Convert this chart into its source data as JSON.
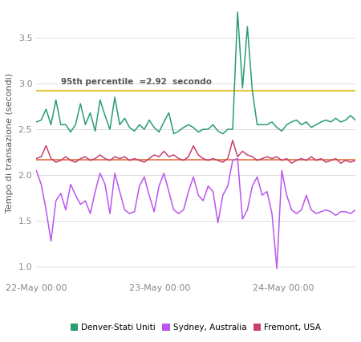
{
  "title": "",
  "ylabel": "Tempo di transazione (secondi)",
  "ylim": [
    0.85,
    3.85
  ],
  "yticks": [
    1.0,
    1.5,
    2.0,
    2.5,
    3.0,
    3.5
  ],
  "percentile_value": 2.92,
  "percentile_label": "95th percentile  =2.92  secondo",
  "percentile_color": "#e8c840",
  "fremont_hline": 2.17,
  "fremont_hline_color": "#e07040",
  "background_color": "#ffffff",
  "grid_color": "#dddddd",
  "denver_color": "#2a9d6e",
  "sydney_color": "#bb55ee",
  "fremont_color": "#c84070",
  "legend_labels": [
    "Denver-Stati Uniti",
    "Sydney, Australia",
    "Fremont, USA"
  ],
  "x_tick_labels": [
    "22-May 00:00",
    "23-May 00:00",
    "24-May 00:00"
  ],
  "denver_values": [
    2.58,
    2.6,
    2.72,
    2.55,
    2.82,
    2.55,
    2.55,
    2.47,
    2.55,
    2.78,
    2.55,
    2.68,
    2.48,
    2.82,
    2.65,
    2.5,
    2.85,
    2.55,
    2.62,
    2.52,
    2.48,
    2.55,
    2.5,
    2.6,
    2.52,
    2.47,
    2.58,
    2.68,
    2.45,
    2.48,
    2.52,
    2.55,
    2.52,
    2.47,
    2.5,
    2.5,
    2.55,
    2.48,
    2.45,
    2.5,
    2.5,
    3.78,
    2.95,
    3.62,
    2.92,
    2.55,
    2.55,
    2.55,
    2.58,
    2.52,
    2.48,
    2.55,
    2.58,
    2.6,
    2.55,
    2.58,
    2.52,
    2.55,
    2.58,
    2.6,
    2.58,
    2.62,
    2.58,
    2.6,
    2.65,
    2.6
  ],
  "sydney_values": [
    2.05,
    1.9,
    1.62,
    1.28,
    1.72,
    1.8,
    1.62,
    1.9,
    1.78,
    1.68,
    1.72,
    1.58,
    1.82,
    2.02,
    1.9,
    1.58,
    2.02,
    1.82,
    1.62,
    1.58,
    1.6,
    1.88,
    1.98,
    1.78,
    1.6,
    1.88,
    2.02,
    1.82,
    1.62,
    1.58,
    1.62,
    1.82,
    1.98,
    1.78,
    1.72,
    1.88,
    1.82,
    1.48,
    1.78,
    1.88,
    2.16,
    2.18,
    1.52,
    1.62,
    1.88,
    1.98,
    1.78,
    1.82,
    1.58,
    0.98,
    2.05,
    1.78,
    1.62,
    1.58,
    1.62,
    1.78,
    1.62,
    1.58,
    1.6,
    1.62,
    1.6,
    1.56,
    1.6,
    1.6,
    1.58,
    1.62
  ],
  "fremont_values": [
    2.18,
    2.2,
    2.32,
    2.18,
    2.14,
    2.16,
    2.2,
    2.16,
    2.14,
    2.18,
    2.2,
    2.16,
    2.18,
    2.22,
    2.18,
    2.16,
    2.2,
    2.18,
    2.2,
    2.16,
    2.18,
    2.16,
    2.14,
    2.18,
    2.22,
    2.2,
    2.26,
    2.2,
    2.22,
    2.18,
    2.16,
    2.2,
    2.32,
    2.22,
    2.18,
    2.16,
    2.18,
    2.16,
    2.14,
    2.18,
    2.38,
    2.2,
    2.26,
    2.22,
    2.2,
    2.16,
    2.18,
    2.2,
    2.18,
    2.2,
    2.16,
    2.18,
    2.13,
    2.16,
    2.18,
    2.16,
    2.2,
    2.16,
    2.18,
    2.14,
    2.16,
    2.18,
    2.13,
    2.16,
    2.14,
    2.16
  ]
}
